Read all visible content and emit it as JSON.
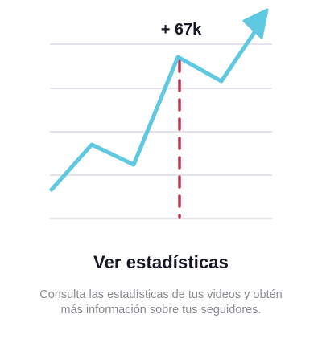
{
  "illustration": {
    "callout_label": "+ 67k",
    "line_color": "#5ec9e0",
    "marker_color": "#c2344f",
    "grid_color": "#e4e2ea",
    "arrow_icon": "arrow-up-right-icon"
  },
  "onboarding": {
    "title": "Ver estadísticas",
    "description": "Consulta las estadísticas de tus videos y obtén más información sobre tus seguidores."
  }
}
